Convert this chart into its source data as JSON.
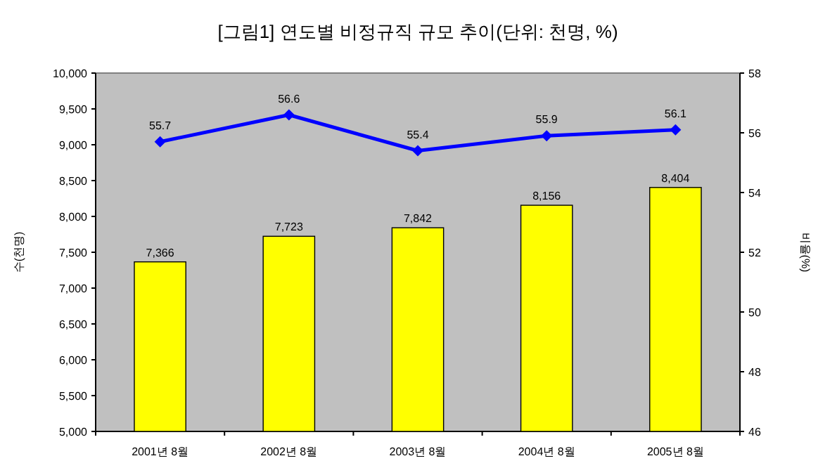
{
  "chart_data": {
    "type": "bar",
    "title": "[그림1] 연도별 비정규직 규모 추이(단위: 천명, %)",
    "ylabel": "수(천명)",
    "y2label": "비율(%)",
    "categories": [
      "2001년 8월",
      "2002년 8월",
      "2003년 8월",
      "2004년 8월",
      "2005년 8월"
    ],
    "series": [
      {
        "color": "#ffff00",
        "values": [
          7366,
          7723,
          7842,
          8156,
          8404
        ],
        "value_labels": [
          "7,366",
          "7,723",
          "7,842",
          "8,156",
          "8,404"
        ]
      },
      {
        "type": "line",
        "axis": "y2",
        "color": "#0000ff",
        "marker": "diamond",
        "values": [
          55.7,
          56.6,
          55.4,
          55.9,
          56.1
        ],
        "value_labels": [
          "55.7",
          "56.6",
          "55.4",
          "55.9",
          "56.1"
        ]
      }
    ],
    "ylim": [
      5000,
      10000
    ],
    "yticks": [
      {
        "value": 5000,
        "label": "5,000"
      },
      {
        "value": 5500,
        "label": "5,500"
      },
      {
        "value": 6000,
        "label": "6,000"
      },
      {
        "value": 6500,
        "label": "6,500"
      },
      {
        "value": 7000,
        "label": "7,000"
      },
      {
        "value": 7500,
        "label": "7,500"
      },
      {
        "value": 8000,
        "label": "8,000"
      },
      {
        "value": 8500,
        "label": "8,500"
      },
      {
        "value": 9000,
        "label": "9,000"
      },
      {
        "value": 9500,
        "label": "9,500"
      },
      {
        "value": 10000,
        "label": "10,000"
      }
    ],
    "y2lim": [
      46,
      58
    ],
    "y2ticks": [
      46,
      48,
      50,
      52,
      54,
      56,
      58
    ]
  }
}
